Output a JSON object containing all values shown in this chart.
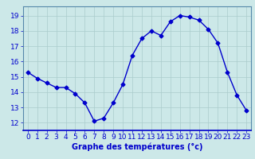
{
  "hours": [
    0,
    1,
    2,
    3,
    4,
    5,
    6,
    7,
    8,
    9,
    10,
    11,
    12,
    13,
    14,
    15,
    16,
    17,
    18,
    19,
    20,
    21,
    22,
    23
  ],
  "temps": [
    15.3,
    14.9,
    14.6,
    14.3,
    14.3,
    13.9,
    13.3,
    12.1,
    12.3,
    13.3,
    14.5,
    16.4,
    17.5,
    18.0,
    17.7,
    18.6,
    19.0,
    18.9,
    18.7,
    18.1,
    17.2,
    15.3,
    13.8,
    12.8
  ],
  "line_color": "#0000cc",
  "marker": "D",
  "marker_size": 2.5,
  "bg_color": "#cce8e8",
  "grid_color": "#aacccc",
  "xlabel": "Graphe des températures (°c)",
  "xlabel_color": "#0000cc",
  "xlabel_fontsize": 7,
  "tick_color": "#0000cc",
  "tick_fontsize": 6.5,
  "ylim": [
    11.5,
    19.6
  ],
  "yticks": [
    12,
    13,
    14,
    15,
    16,
    17,
    18,
    19
  ],
  "xlim": [
    -0.5,
    23.5
  ],
  "xticks": [
    0,
    1,
    2,
    3,
    4,
    5,
    6,
    7,
    8,
    9,
    10,
    11,
    12,
    13,
    14,
    15,
    16,
    17,
    18,
    19,
    20,
    21,
    22,
    23
  ]
}
